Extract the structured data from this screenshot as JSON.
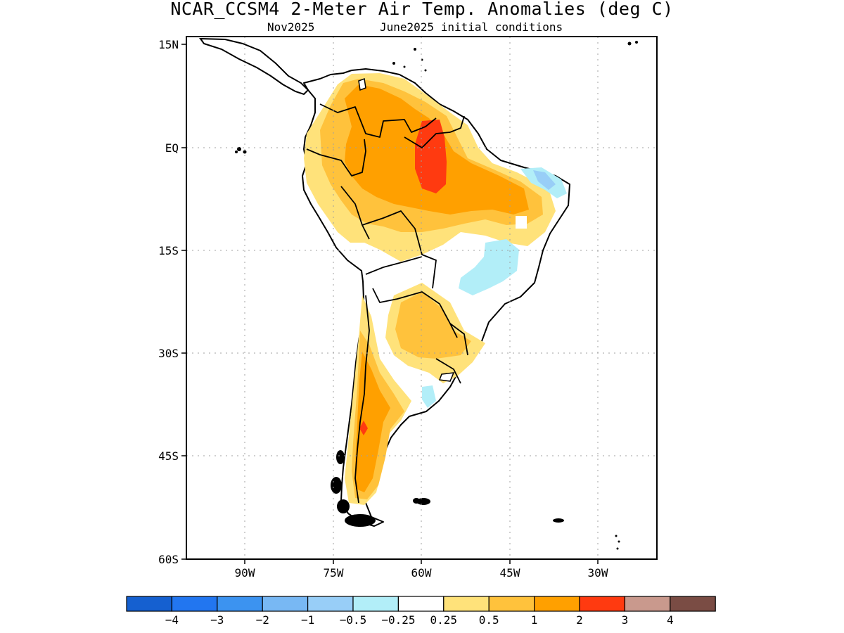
{
  "title": "NCAR_CCSM4 2-Meter Air Temp. Anomalies (deg C)",
  "subtitle_left": "Nov2025",
  "subtitle_right": "June2025 initial conditions",
  "y_ticks": [
    "15N",
    "EQ",
    "15S",
    "30S",
    "45S",
    "60S"
  ],
  "x_ticks": [
    "90W",
    "75W",
    "60W",
    "45W",
    "30W"
  ],
  "legend": {
    "colors": [
      "#1560d0",
      "#2276f0",
      "#3c93f0",
      "#78b8f4",
      "#98cef7",
      "#b2eef8",
      "#ffffff",
      "#ffe27a",
      "#ffc23c",
      "#ffa000",
      "#ff3a10",
      "#c9998d",
      "#7a4c44"
    ],
    "labels": [
      "−4",
      "−3",
      "−2",
      "−1",
      "−0.5",
      "−0.25",
      "0.25",
      "0.5",
      "1",
      "2",
      "3",
      "4"
    ]
  },
  "colors": {
    "land_outline": "#000000",
    "grid": "#a0a0a0"
  }
}
